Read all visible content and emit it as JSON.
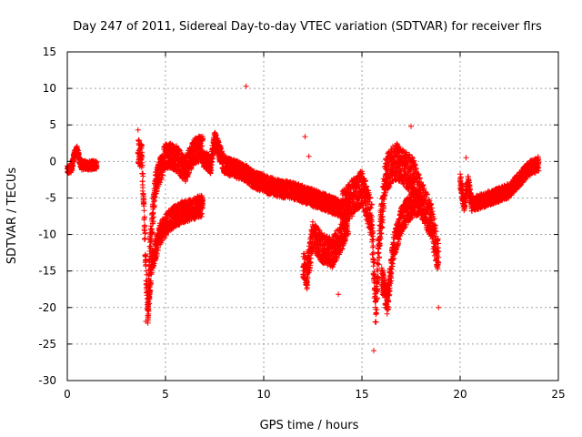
{
  "chart_data": {
    "type": "scatter",
    "title": "Day 247 of 2011, Sidereal Day-to-day VTEC variation (SDTVAR) for receiver flrs",
    "xlabel": "GPS time / hours",
    "ylabel": "SDTVAR / TECUs",
    "xlim": [
      0,
      25
    ],
    "ylim": [
      -30,
      15
    ],
    "x_ticks": [
      0,
      5,
      10,
      15,
      20,
      25
    ],
    "y_ticks": [
      -30,
      -25,
      -20,
      -15,
      -10,
      -5,
      0,
      5,
      10,
      15
    ],
    "x_tick_labels": [
      "0",
      "5",
      "10",
      "15",
      "20",
      "25"
    ],
    "y_tick_labels": [
      "-30",
      "-25",
      "-20",
      "-15",
      "-10",
      "-5",
      "0",
      "5",
      "10",
      "15"
    ],
    "grid": true,
    "marker": "+",
    "color": "#ff0000",
    "series": [
      {
        "name": "SDTVAR",
        "segments": [
          {
            "x": [
              0.0,
              0.2,
              0.35,
              0.5,
              0.7,
              0.9,
              1.1,
              1.3,
              1.5
            ],
            "y": [
              -1.2,
              -1.0,
              0.8,
              1.6,
              -0.6,
              -0.5,
              -0.6,
              -0.5,
              -0.4
            ],
            "spread": 0.6
          },
          {
            "x": [
              3.6,
              3.8,
              4.0,
              4.1,
              4.2,
              4.5,
              5.0,
              5.5,
              6.0,
              6.5,
              6.9
            ],
            "y": [
              1.5,
              0.5,
              -14.0,
              -21.0,
              -12.0,
              -3.0,
              1.0,
              0.5,
              -1.0,
              1.5,
              2.0
            ],
            "spread": 1.8
          },
          {
            "x": [
              4.1,
              4.3,
              4.7,
              5.2,
              5.8,
              6.4,
              6.9
            ],
            "y": [
              -20.5,
              -14.0,
              -10.0,
              -8.0,
              -7.0,
              -6.5,
              -6.0
            ],
            "spread": 1.5
          },
          {
            "x": [
              6.9,
              7.3,
              7.5,
              8.0,
              8.5,
              9.0,
              9.5,
              10.0,
              10.5,
              11.0,
              11.5,
              12.0,
              12.5,
              13.0,
              13.5,
              14.0
            ],
            "y": [
              0.5,
              -0.5,
              3.0,
              -0.5,
              -1.0,
              -1.5,
              -2.5,
              -3.0,
              -3.5,
              -3.8,
              -4.0,
              -4.5,
              -5.0,
              -5.5,
              -6.0,
              -6.5
            ],
            "spread": 1.2
          },
          {
            "x": [
              12.0,
              12.2,
              12.5,
              13.0,
              13.5,
              14.0,
              14.3
            ],
            "y": [
              -14.0,
              -15.5,
              -10.0,
              -12.0,
              -12.5,
              -10.0,
              -8.0
            ],
            "spread": 2.0
          },
          {
            "x": [
              14.0,
              14.5,
              15.0,
              15.5,
              15.7,
              15.9,
              16.2,
              16.5,
              16.8,
              17.2,
              17.6,
              18.0,
              18.5,
              18.9
            ],
            "y": [
              -6.5,
              -5.0,
              -3.5,
              -8.0,
              -21.0,
              -10.0,
              -2.0,
              -0.5,
              0.0,
              -1.0,
              -2.0,
              -5.0,
              -8.0,
              -13.0
            ],
            "spread": 2.5
          },
          {
            "x": [
              16.0,
              16.3,
              16.6,
              17.0,
              17.5,
              18.0
            ],
            "y": [
              -16.0,
              -19.5,
              -12.0,
              -8.0,
              -6.0,
              -5.5
            ],
            "spread": 1.8
          },
          {
            "x": [
              20.0,
              20.2,
              20.4,
              20.6,
              21.0,
              21.5,
              22.0,
              22.5,
              23.0,
              23.5,
              24.0
            ],
            "y": [
              -2.5,
              -6.0,
              -2.8,
              -6.0,
              -5.5,
              -5.0,
              -4.5,
              -4.0,
              -2.5,
              -1.0,
              -0.3
            ],
            "spread": 1.0
          }
        ],
        "outliers": [
          {
            "x": 3.6,
            "y": 4.3
          },
          {
            "x": 9.1,
            "y": 10.3
          },
          {
            "x": 12.1,
            "y": 3.4
          },
          {
            "x": 12.3,
            "y": 0.7
          },
          {
            "x": 13.8,
            "y": -18.2
          },
          {
            "x": 15.6,
            "y": -25.9
          },
          {
            "x": 17.5,
            "y": 4.8
          },
          {
            "x": 18.9,
            "y": -20.0
          },
          {
            "x": 20.3,
            "y": 0.5
          },
          {
            "x": 4.0,
            "y": -21.9
          }
        ]
      }
    ]
  }
}
